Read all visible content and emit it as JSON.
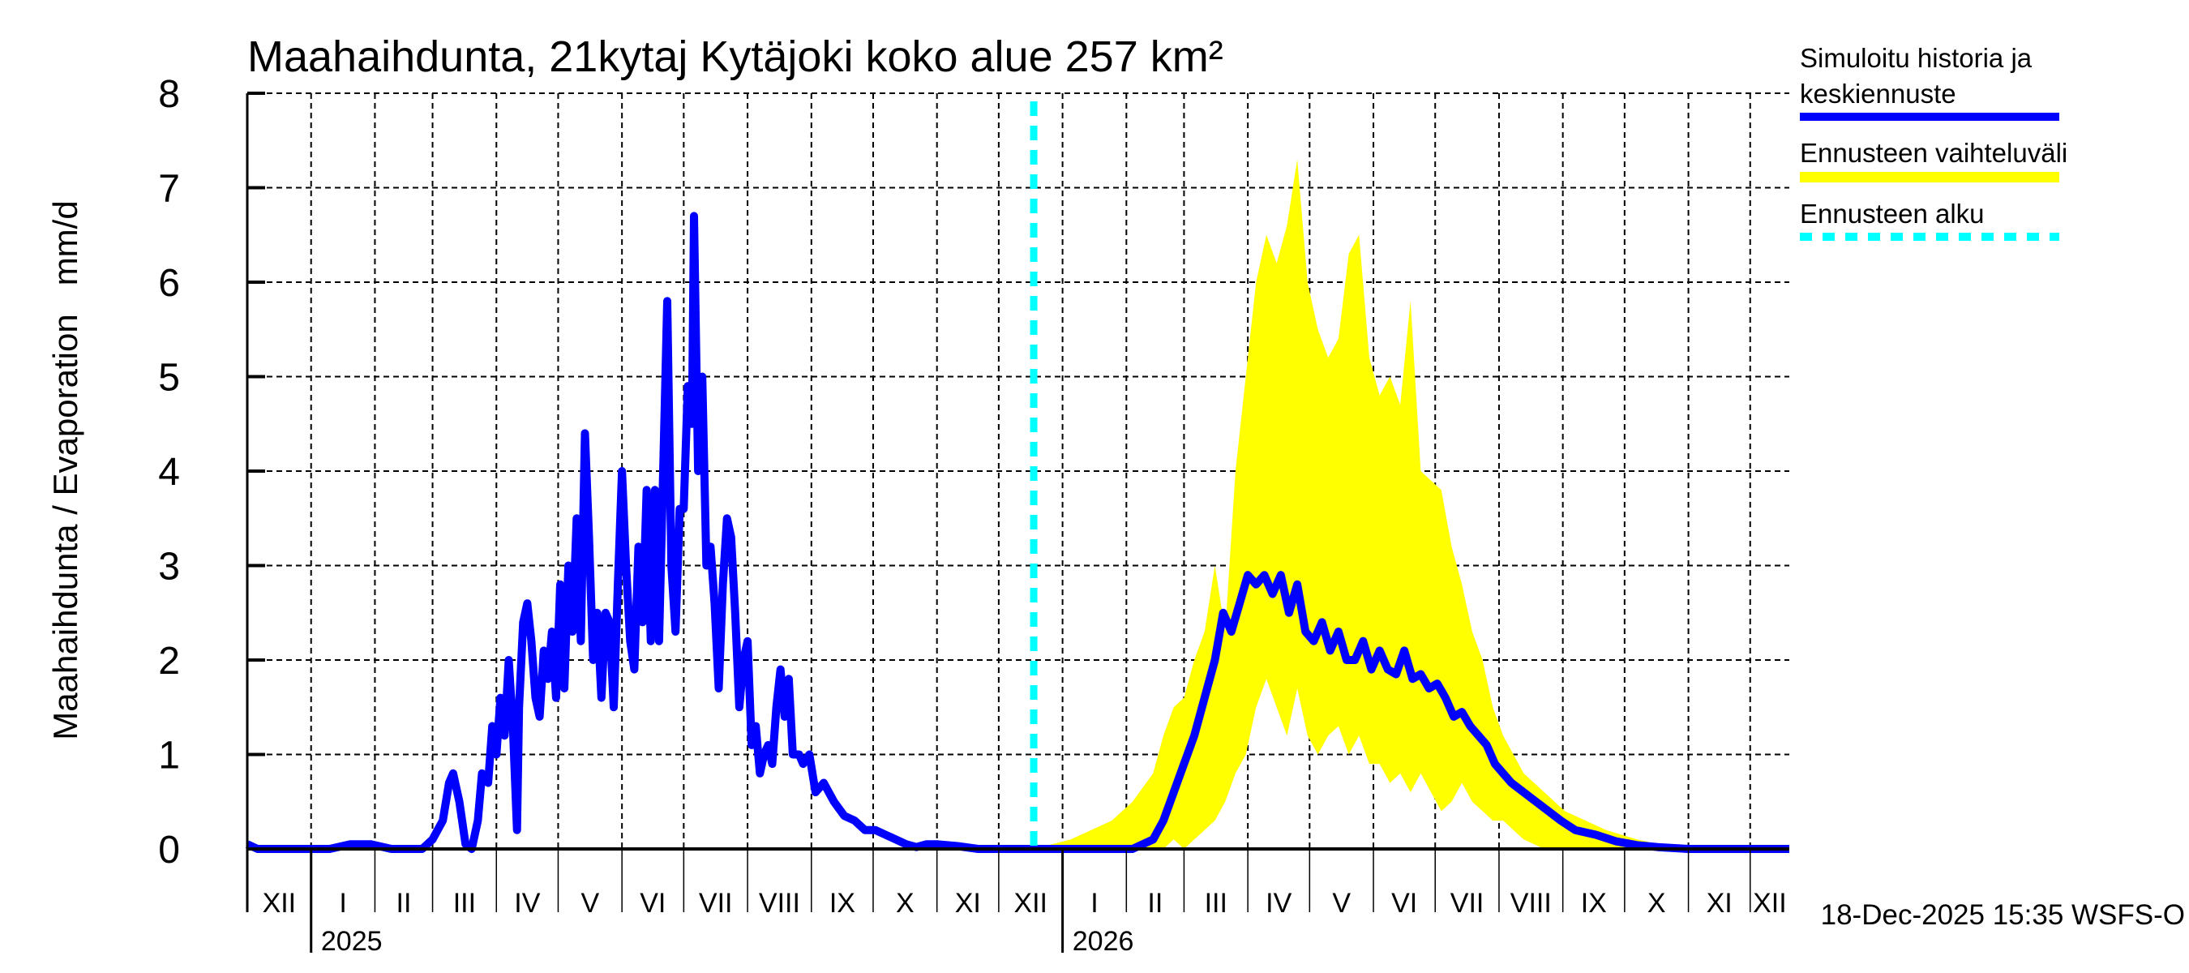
{
  "chart_data": {
    "type": "area",
    "title": "Maahaihdunta, 21kytaj Kytäjoki koko alue 257 km²",
    "ylabel": "Maahaihdunta / Evaporation   mm/d",
    "xlabel": "",
    "ylim": [
      0,
      8
    ],
    "yticks": [
      "0",
      "1",
      "2",
      "3",
      "4",
      "5",
      "6",
      "7",
      "8"
    ],
    "x_unit": "days since 2024-12-01",
    "xlim": [
      0,
      749
    ],
    "grid": true,
    "legend_position": "right",
    "months": [
      {
        "label": "XII",
        "start": 0,
        "end": 31
      },
      {
        "label": "I",
        "start": 31,
        "end": 62
      },
      {
        "label": "II",
        "start": 62,
        "end": 90
      },
      {
        "label": "III",
        "start": 90,
        "end": 121
      },
      {
        "label": "IV",
        "start": 121,
        "end": 151
      },
      {
        "label": "V",
        "start": 151,
        "end": 182
      },
      {
        "label": "VI",
        "start": 182,
        "end": 212
      },
      {
        "label": "VII",
        "start": 212,
        "end": 243
      },
      {
        "label": "VIII",
        "start": 243,
        "end": 274
      },
      {
        "label": "IX",
        "start": 274,
        "end": 304
      },
      {
        "label": "X",
        "start": 304,
        "end": 335
      },
      {
        "label": "XI",
        "start": 335,
        "end": 365
      },
      {
        "label": "XII",
        "start": 365,
        "end": 396
      },
      {
        "label": "I",
        "start": 396,
        "end": 427
      },
      {
        "label": "II",
        "start": 427,
        "end": 455
      },
      {
        "label": "III",
        "start": 455,
        "end": 486
      },
      {
        "label": "IV",
        "start": 486,
        "end": 516
      },
      {
        "label": "V",
        "start": 516,
        "end": 547
      },
      {
        "label": "VI",
        "start": 547,
        "end": 577
      },
      {
        "label": "VII",
        "start": 577,
        "end": 608
      },
      {
        "label": "VIII",
        "start": 608,
        "end": 639
      },
      {
        "label": "IX",
        "start": 639,
        "end": 669
      },
      {
        "label": "X",
        "start": 669,
        "end": 700
      },
      {
        "label": "XI",
        "start": 700,
        "end": 730
      },
      {
        "label": "XII",
        "start": 730,
        "end": 749
      }
    ],
    "years": [
      {
        "label": "2025",
        "start": 31
      },
      {
        "label": "2026",
        "start": 396
      }
    ],
    "forecast_start": 382,
    "series": [
      {
        "name": "Simuloitu historia ja keskiennuste",
        "color": "#0000ff",
        "points": [
          [
            0,
            0.05
          ],
          [
            5,
            0
          ],
          [
            40,
            0
          ],
          [
            50,
            0.05
          ],
          [
            60,
            0.05
          ],
          [
            70,
            0
          ],
          [
            85,
            0
          ],
          [
            90,
            0.1
          ],
          [
            95,
            0.3
          ],
          [
            98,
            0.7
          ],
          [
            100,
            0.8
          ],
          [
            103,
            0.5
          ],
          [
            106,
            0.05
          ],
          [
            109,
            0
          ],
          [
            112,
            0.3
          ],
          [
            114,
            0.8
          ],
          [
            117,
            0.7
          ],
          [
            119,
            1.3
          ],
          [
            121,
            1.0
          ],
          [
            123,
            1.6
          ],
          [
            125,
            1.2
          ],
          [
            127,
            2.0
          ],
          [
            129,
            1.3
          ],
          [
            131,
            0.2
          ],
          [
            132,
            1.5
          ],
          [
            134,
            2.4
          ],
          [
            136,
            2.6
          ],
          [
            138,
            2.2
          ],
          [
            140,
            1.6
          ],
          [
            142,
            1.4
          ],
          [
            144,
            2.1
          ],
          [
            146,
            1.8
          ],
          [
            148,
            2.3
          ],
          [
            150,
            1.6
          ],
          [
            152,
            2.8
          ],
          [
            154,
            1.7
          ],
          [
            156,
            3.0
          ],
          [
            158,
            2.3
          ],
          [
            160,
            3.5
          ],
          [
            162,
            2.2
          ],
          [
            164,
            4.4
          ],
          [
            166,
            3.3
          ],
          [
            168,
            2.0
          ],
          [
            170,
            2.5
          ],
          [
            172,
            1.6
          ],
          [
            174,
            2.5
          ],
          [
            176,
            2.4
          ],
          [
            178,
            1.5
          ],
          [
            180,
            2.8
          ],
          [
            182,
            4.0
          ],
          [
            184,
            3.0
          ],
          [
            186,
            2.2
          ],
          [
            188,
            1.9
          ],
          [
            190,
            3.2
          ],
          [
            192,
            2.4
          ],
          [
            194,
            3.8
          ],
          [
            196,
            2.2
          ],
          [
            198,
            3.8
          ],
          [
            200,
            2.2
          ],
          [
            202,
            4.0
          ],
          [
            204,
            5.8
          ],
          [
            206,
            3.0
          ],
          [
            208,
            2.3
          ],
          [
            210,
            3.6
          ],
          [
            212,
            3.6
          ],
          [
            214,
            4.9
          ],
          [
            216,
            4.5
          ],
          [
            217,
            6.7
          ],
          [
            219,
            4.0
          ],
          [
            221,
            5.0
          ],
          [
            223,
            3.0
          ],
          [
            225,
            3.2
          ],
          [
            227,
            2.6
          ],
          [
            229,
            1.7
          ],
          [
            231,
            2.8
          ],
          [
            233,
            3.5
          ],
          [
            235,
            3.3
          ],
          [
            237,
            2.5
          ],
          [
            239,
            1.5
          ],
          [
            241,
            2.0
          ],
          [
            243,
            2.2
          ],
          [
            245,
            1.1
          ],
          [
            247,
            1.3
          ],
          [
            249,
            0.8
          ],
          [
            251,
            1.0
          ],
          [
            253,
            1.1
          ],
          [
            255,
            0.9
          ],
          [
            257,
            1.5
          ],
          [
            259,
            1.9
          ],
          [
            261,
            1.4
          ],
          [
            263,
            1.8
          ],
          [
            265,
            1.0
          ],
          [
            268,
            1.0
          ],
          [
            270,
            0.9
          ],
          [
            273,
            1.0
          ],
          [
            276,
            0.6
          ],
          [
            280,
            0.7
          ],
          [
            285,
            0.5
          ],
          [
            290,
            0.35
          ],
          [
            295,
            0.3
          ],
          [
            300,
            0.2
          ],
          [
            305,
            0.2
          ],
          [
            310,
            0.15
          ],
          [
            315,
            0.1
          ],
          [
            320,
            0.05
          ],
          [
            325,
            0.02
          ],
          [
            330,
            0.05
          ],
          [
            335,
            0.05
          ],
          [
            345,
            0.03
          ],
          [
            355,
            0
          ],
          [
            370,
            0
          ],
          [
            382,
            0
          ],
          [
            430,
            0
          ],
          [
            440,
            0.1
          ],
          [
            445,
            0.3
          ],
          [
            450,
            0.6
          ],
          [
            455,
            0.9
          ],
          [
            460,
            1.2
          ],
          [
            465,
            1.6
          ],
          [
            470,
            2.0
          ],
          [
            474,
            2.5
          ],
          [
            478,
            2.3
          ],
          [
            482,
            2.6
          ],
          [
            486,
            2.9
          ],
          [
            490,
            2.8
          ],
          [
            494,
            2.9
          ],
          [
            498,
            2.7
          ],
          [
            502,
            2.9
          ],
          [
            506,
            2.5
          ],
          [
            510,
            2.8
          ],
          [
            514,
            2.3
          ],
          [
            518,
            2.2
          ],
          [
            522,
            2.4
          ],
          [
            526,
            2.1
          ],
          [
            530,
            2.3
          ],
          [
            534,
            2.0
          ],
          [
            538,
            2.0
          ],
          [
            542,
            2.2
          ],
          [
            546,
            1.9
          ],
          [
            550,
            2.1
          ],
          [
            554,
            1.9
          ],
          [
            558,
            1.85
          ],
          [
            562,
            2.1
          ],
          [
            566,
            1.8
          ],
          [
            570,
            1.85
          ],
          [
            574,
            1.7
          ],
          [
            578,
            1.75
          ],
          [
            582,
            1.6
          ],
          [
            586,
            1.4
          ],
          [
            590,
            1.45
          ],
          [
            594,
            1.3
          ],
          [
            598,
            1.2
          ],
          [
            602,
            1.1
          ],
          [
            606,
            0.9
          ],
          [
            610,
            0.8
          ],
          [
            614,
            0.7
          ],
          [
            620,
            0.6
          ],
          [
            626,
            0.5
          ],
          [
            632,
            0.4
          ],
          [
            638,
            0.3
          ],
          [
            645,
            0.2
          ],
          [
            655,
            0.15
          ],
          [
            665,
            0.08
          ],
          [
            675,
            0.04
          ],
          [
            685,
            0.02
          ],
          [
            700,
            0
          ],
          [
            749,
            0
          ]
        ]
      },
      {
        "name": "Ennusteen vaihteluväli",
        "color": "#ffff00",
        "band": [
          [
            382,
            0,
            0
          ],
          [
            400,
            0,
            0.1
          ],
          [
            420,
            0,
            0.3
          ],
          [
            430,
            0,
            0.5
          ],
          [
            440,
            0,
            0.8
          ],
          [
            445,
            0,
            1.2
          ],
          [
            450,
            0.1,
            1.5
          ],
          [
            455,
            0,
            1.6
          ],
          [
            460,
            0.1,
            2.0
          ],
          [
            465,
            0.2,
            2.3
          ],
          [
            470,
            0.3,
            3.0
          ],
          [
            475,
            0.5,
            2.3
          ],
          [
            480,
            0.8,
            4.0
          ],
          [
            485,
            1.0,
            5.0
          ],
          [
            490,
            1.5,
            6.0
          ],
          [
            495,
            1.8,
            6.5
          ],
          [
            500,
            1.5,
            6.2
          ],
          [
            505,
            1.2,
            6.6
          ],
          [
            510,
            1.7,
            7.3
          ],
          [
            515,
            1.2,
            6.0
          ],
          [
            520,
            1.0,
            5.5
          ],
          [
            525,
            1.2,
            5.2
          ],
          [
            530,
            1.3,
            5.4
          ],
          [
            535,
            1.0,
            6.3
          ],
          [
            540,
            1.2,
            6.5
          ],
          [
            545,
            0.9,
            5.2
          ],
          [
            550,
            0.9,
            4.8
          ],
          [
            555,
            0.7,
            5.0
          ],
          [
            560,
            0.8,
            4.7
          ],
          [
            565,
            0.6,
            5.8
          ],
          [
            570,
            0.8,
            4.0
          ],
          [
            575,
            0.6,
            3.9
          ],
          [
            580,
            0.4,
            3.8
          ],
          [
            585,
            0.5,
            3.2
          ],
          [
            590,
            0.7,
            2.8
          ],
          [
            595,
            0.5,
            2.3
          ],
          [
            600,
            0.4,
            2.0
          ],
          [
            605,
            0.3,
            1.5
          ],
          [
            610,
            0.3,
            1.2
          ],
          [
            615,
            0.2,
            1.0
          ],
          [
            620,
            0.1,
            0.8
          ],
          [
            630,
            0,
            0.6
          ],
          [
            640,
            0,
            0.4
          ],
          [
            650,
            0,
            0.3
          ],
          [
            660,
            0,
            0.2
          ],
          [
            675,
            0,
            0.1
          ],
          [
            690,
            0,
            0.03
          ],
          [
            700,
            0,
            0
          ]
        ]
      },
      {
        "name": "Ennusteen alku",
        "color": "#00ffff"
      }
    ],
    "legend": [
      {
        "line1": "Simuloitu historia ja",
        "line2": "keskiennuste",
        "color": "#0000ff",
        "style": "solid"
      },
      {
        "line1": "Ennusteen vaihteluväli",
        "color": "#ffff00",
        "style": "solid"
      },
      {
        "line1": "Ennusteen alku",
        "color": "#00ffff",
        "style": "dashed"
      }
    ],
    "footer": "18-Dec-2025 15:35 WSFS-O"
  }
}
